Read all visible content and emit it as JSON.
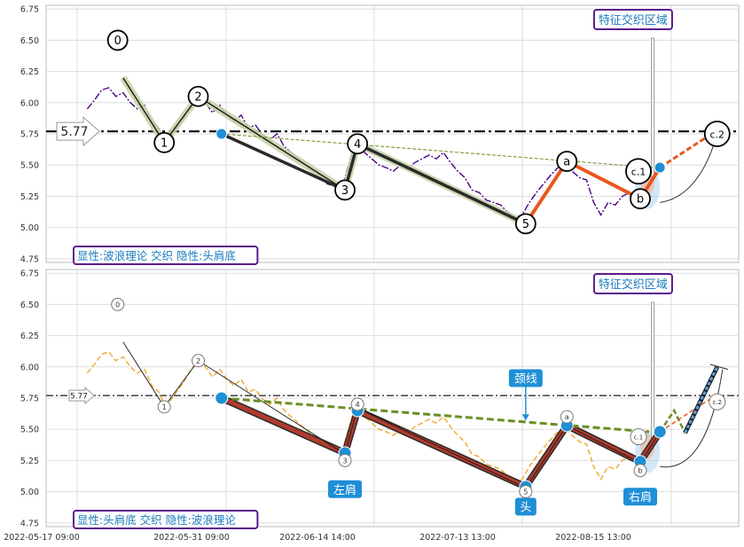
{
  "chart_data": [
    {
      "type": "line",
      "panel": "top",
      "caption": "显性:波浪理论 交织 隐性:头肩底",
      "zone_label": "特征交织区域",
      "ylim": [
        4.72,
        6.78
      ],
      "yticks": [
        "6.75",
        "6.50",
        "6.25",
        "6.00",
        "5.75",
        "5.50",
        "5.25",
        "5.00",
        "4.75"
      ],
      "reference_line": {
        "value": 5.77,
        "label": "5.77"
      },
      "wave_points": [
        {
          "label": "0",
          "x": 8.5,
          "y": 6.5
        },
        {
          "label": "1",
          "x": 11.1,
          "y": 5.68
        },
        {
          "label": "2",
          "x": 13.0,
          "y": 6.05
        },
        {
          "label": "3",
          "x": 21.2,
          "y": 5.3
        },
        {
          "label": "4",
          "x": 21.9,
          "y": 5.67
        },
        {
          "label": "5",
          "x": 31.3,
          "y": 5.03
        },
        {
          "label": "a",
          "x": 33.6,
          "y": 5.53
        },
        {
          "label": "b",
          "x": 37.7,
          "y": 5.23
        },
        {
          "label": "c.1",
          "x": 37.6,
          "y": 5.45
        },
        {
          "label": "c.2",
          "x": 42.0,
          "y": 5.75
        }
      ],
      "series": [
        {
          "role": "price",
          "color": "#4b0082",
          "points": [
            [
              6.8,
              5.95
            ],
            [
              7.2,
              6.02
            ],
            [
              7.6,
              6.1
            ],
            [
              8,
              6.12
            ],
            [
              8.4,
              6.05
            ],
            [
              8.8,
              6.08
            ],
            [
              9.2,
              6.0
            ],
            [
              9.6,
              5.95
            ],
            [
              10,
              5.98
            ],
            [
              10.4,
              5.85
            ],
            [
              10.8,
              5.8
            ],
            [
              11.1,
              5.7
            ],
            [
              11.4,
              5.72
            ],
            [
              11.8,
              5.8
            ],
            [
              12.2,
              5.88
            ],
            [
              12.6,
              5.98
            ],
            [
              13,
              6.04
            ],
            [
              13.4,
              6.0
            ],
            [
              13.8,
              5.92
            ],
            [
              14.2,
              5.98
            ],
            [
              14.6,
              5.9
            ],
            [
              15,
              5.85
            ],
            [
              15.4,
              5.9
            ],
            [
              15.8,
              5.8
            ],
            [
              16.2,
              5.82
            ],
            [
              16.6,
              5.74
            ],
            [
              17,
              5.7
            ],
            [
              17.4,
              5.75
            ],
            [
              17.8,
              5.65
            ],
            [
              18.2,
              5.6
            ],
            [
              18.6,
              5.55
            ],
            [
              19,
              5.5
            ],
            [
              19.4,
              5.45
            ],
            [
              19.8,
              5.42
            ],
            [
              20.2,
              5.35
            ],
            [
              20.6,
              5.33
            ],
            [
              21,
              5.3
            ],
            [
              21.3,
              5.45
            ],
            [
              21.6,
              5.6
            ],
            [
              21.9,
              5.66
            ],
            [
              22.3,
              5.6
            ],
            [
              22.7,
              5.55
            ],
            [
              23.1,
              5.5
            ],
            [
              23.5,
              5.48
            ],
            [
              23.9,
              5.45
            ],
            [
              24.3,
              5.5
            ],
            [
              24.7,
              5.47
            ],
            [
              25.1,
              5.52
            ],
            [
              25.5,
              5.55
            ],
            [
              25.9,
              5.58
            ],
            [
              26.3,
              5.55
            ],
            [
              26.7,
              5.6
            ],
            [
              27.1,
              5.52
            ],
            [
              27.5,
              5.45
            ],
            [
              27.9,
              5.4
            ],
            [
              28.3,
              5.3
            ],
            [
              28.7,
              5.28
            ],
            [
              29.1,
              5.22
            ],
            [
              29.5,
              5.2
            ],
            [
              29.9,
              5.18
            ],
            [
              30.3,
              5.12
            ],
            [
              30.7,
              5.08
            ],
            [
              31.1,
              5.1
            ],
            [
              31.5,
              5.2
            ],
            [
              31.9,
              5.28
            ],
            [
              32.3,
              5.35
            ],
            [
              32.7,
              5.42
            ],
            [
              33.1,
              5.48
            ],
            [
              33.5,
              5.52
            ],
            [
              33.9,
              5.45
            ],
            [
              34.3,
              5.4
            ],
            [
              34.7,
              5.38
            ],
            [
              35.1,
              5.2
            ],
            [
              35.5,
              5.1
            ],
            [
              35.9,
              5.2
            ],
            [
              36.3,
              5.18
            ],
            [
              36.7,
              5.25
            ],
            [
              37.1,
              5.28
            ],
            [
              37.5,
              5.24
            ]
          ]
        },
        {
          "role": "wave_main",
          "color": "#1a1a1a",
          "points": [
            [
              8.8,
              6.2
            ],
            [
              11.1,
              5.68
            ],
            [
              13.0,
              6.05
            ],
            [
              21.2,
              5.3
            ],
            [
              21.9,
              5.67
            ],
            [
              31.3,
              5.03
            ]
          ]
        },
        {
          "role": "head_shoulder_black",
          "color": "#2a2a2a",
          "points": [
            [
              14.3,
              5.75
            ],
            [
              21.2,
              5.3
            ],
            [
              21.9,
              5.67
            ],
            [
              31.3,
              5.03
            ]
          ]
        },
        {
          "role": "wave_abc",
          "color": "#e8571e",
          "points": [
            [
              31.3,
              5.03
            ],
            [
              33.6,
              5.53
            ],
            [
              37.7,
              5.23
            ],
            [
              38.8,
              5.48
            ],
            [
              42.0,
              5.78
            ]
          ]
        },
        {
          "role": "neckline",
          "color": "#6b8e23",
          "points": [
            [
              14.3,
              5.75
            ],
            [
              38.4,
              5.48
            ]
          ]
        }
      ]
    },
    {
      "type": "line",
      "panel": "bottom",
      "caption": "显性:头肩底 交织 隐性:波浪理论",
      "zone_label": "特征交织区域",
      "ylim": [
        4.72,
        6.78
      ],
      "yticks": [
        "6.75",
        "6.50",
        "6.25",
        "6.00",
        "5.75",
        "5.50",
        "5.25",
        "5.00",
        "4.75"
      ],
      "reference_line": {
        "value": 5.77,
        "label": "5.77"
      },
      "neckline_label": "颈线",
      "shoulder_labels": {
        "left": "左肩",
        "head": "头",
        "right": "右肩"
      },
      "x_ticks": [
        "2022-05-17 09:00",
        "2022-05-31 09:00",
        "2022-06-14 14:00",
        "2022-07-13 13:00",
        "2022-08-15 13:00"
      ],
      "wave_points": [
        {
          "label": "0",
          "x": 8.5,
          "y": 6.5
        },
        {
          "label": "1",
          "x": 11.1,
          "y": 5.68
        },
        {
          "label": "2",
          "x": 13.0,
          "y": 6.05
        },
        {
          "label": "3",
          "x": 21.2,
          "y": 5.25
        },
        {
          "label": "4",
          "x": 21.9,
          "y": 5.7
        },
        {
          "label": "5",
          "x": 31.3,
          "y": 5.0
        },
        {
          "label": "a",
          "x": 33.6,
          "y": 5.6
        },
        {
          "label": "b",
          "x": 37.7,
          "y": 5.17
        },
        {
          "label": "c.1",
          "x": 37.6,
          "y": 5.44
        },
        {
          "label": "c.2",
          "x": 42.0,
          "y": 5.72
        }
      ],
      "series": [
        {
          "role": "price",
          "color": "#f0a830",
          "points": [
            [
              6.8,
              5.95
            ],
            [
              7.2,
              6.02
            ],
            [
              7.6,
              6.1
            ],
            [
              8,
              6.12
            ],
            [
              8.4,
              6.05
            ],
            [
              8.8,
              6.08
            ],
            [
              9.2,
              6.0
            ],
            [
              9.6,
              5.95
            ],
            [
              10,
              5.98
            ],
            [
              10.4,
              5.85
            ],
            [
              10.8,
              5.8
            ],
            [
              11.1,
              5.7
            ],
            [
              11.4,
              5.72
            ],
            [
              11.8,
              5.8
            ],
            [
              12.2,
              5.88
            ],
            [
              12.6,
              5.98
            ],
            [
              13,
              6.04
            ],
            [
              13.4,
              6.0
            ],
            [
              13.8,
              5.92
            ],
            [
              14.2,
              5.98
            ],
            [
              14.6,
              5.9
            ],
            [
              15,
              5.85
            ],
            [
              15.4,
              5.9
            ],
            [
              15.8,
              5.8
            ],
            [
              16.2,
              5.82
            ],
            [
              16.6,
              5.74
            ],
            [
              17,
              5.7
            ],
            [
              17.4,
              5.75
            ],
            [
              17.8,
              5.65
            ],
            [
              18.2,
              5.6
            ],
            [
              18.6,
              5.55
            ],
            [
              19,
              5.5
            ],
            [
              19.4,
              5.45
            ],
            [
              19.8,
              5.42
            ],
            [
              20.2,
              5.35
            ],
            [
              20.6,
              5.33
            ],
            [
              21,
              5.3
            ],
            [
              21.3,
              5.45
            ],
            [
              21.6,
              5.6
            ],
            [
              21.9,
              5.66
            ],
            [
              22.3,
              5.6
            ],
            [
              22.7,
              5.55
            ],
            [
              23.1,
              5.5
            ],
            [
              23.5,
              5.48
            ],
            [
              23.9,
              5.45
            ],
            [
              24.3,
              5.5
            ],
            [
              24.7,
              5.47
            ],
            [
              25.1,
              5.52
            ],
            [
              25.5,
              5.55
            ],
            [
              25.9,
              5.58
            ],
            [
              26.3,
              5.55
            ],
            [
              26.7,
              5.6
            ],
            [
              27.1,
              5.52
            ],
            [
              27.5,
              5.45
            ],
            [
              27.9,
              5.4
            ],
            [
              28.3,
              5.3
            ],
            [
              28.7,
              5.28
            ],
            [
              29.1,
              5.22
            ],
            [
              29.5,
              5.2
            ],
            [
              29.9,
              5.18
            ],
            [
              30.3,
              5.12
            ],
            [
              30.7,
              5.08
            ],
            [
              31.1,
              5.1
            ],
            [
              31.5,
              5.2
            ],
            [
              31.9,
              5.28
            ],
            [
              32.3,
              5.35
            ],
            [
              32.7,
              5.42
            ],
            [
              33.1,
              5.48
            ],
            [
              33.5,
              5.52
            ],
            [
              33.9,
              5.45
            ],
            [
              34.3,
              5.4
            ],
            [
              34.7,
              5.38
            ],
            [
              35.1,
              5.2
            ],
            [
              35.5,
              5.1
            ],
            [
              35.9,
              5.2
            ],
            [
              36.3,
              5.18
            ],
            [
              36.7,
              5.25
            ],
            [
              37.1,
              5.28
            ],
            [
              37.5,
              5.24
            ]
          ]
        },
        {
          "role": "wave_thin",
          "color": "#1a1a1a",
          "points": [
            [
              8.8,
              6.2
            ],
            [
              11.1,
              5.68
            ],
            [
              13.0,
              6.05
            ],
            [
              21.2,
              5.3
            ],
            [
              21.9,
              5.67
            ],
            [
              31.3,
              5.03
            ],
            [
              33.6,
              5.53
            ],
            [
              37.7,
              5.23
            ],
            [
              38.8,
              5.48
            ]
          ]
        },
        {
          "role": "head_shoulder",
          "color": "#b03a2e",
          "points": [
            [
              14.3,
              5.75
            ],
            [
              21.2,
              5.31
            ],
            [
              21.9,
              5.65
            ],
            [
              31.3,
              5.04
            ],
            [
              33.6,
              5.53
            ],
            [
              37.7,
              5.24
            ],
            [
              38.8,
              5.48
            ]
          ]
        },
        {
          "role": "neckline",
          "color": "#6b8e23",
          "points": [
            [
              14.3,
              5.75
            ],
            [
              38.2,
              5.48
            ]
          ]
        },
        {
          "role": "breakout",
          "color": "#6b8e23",
          "points": [
            [
              38.8,
              5.48
            ],
            [
              39.6,
              5.65
            ],
            [
              40.2,
              5.47
            ],
            [
              42.0,
              6.0
            ]
          ]
        },
        {
          "role": "target",
          "color": "#5aa0d8",
          "points": [
            [
              40.2,
              5.47
            ],
            [
              42.0,
              6.0
            ]
          ]
        },
        {
          "role": "forecast",
          "color": "#e8571e",
          "points": [
            [
              38.8,
              5.48
            ],
            [
              42.0,
              5.78
            ]
          ]
        }
      ]
    }
  ]
}
